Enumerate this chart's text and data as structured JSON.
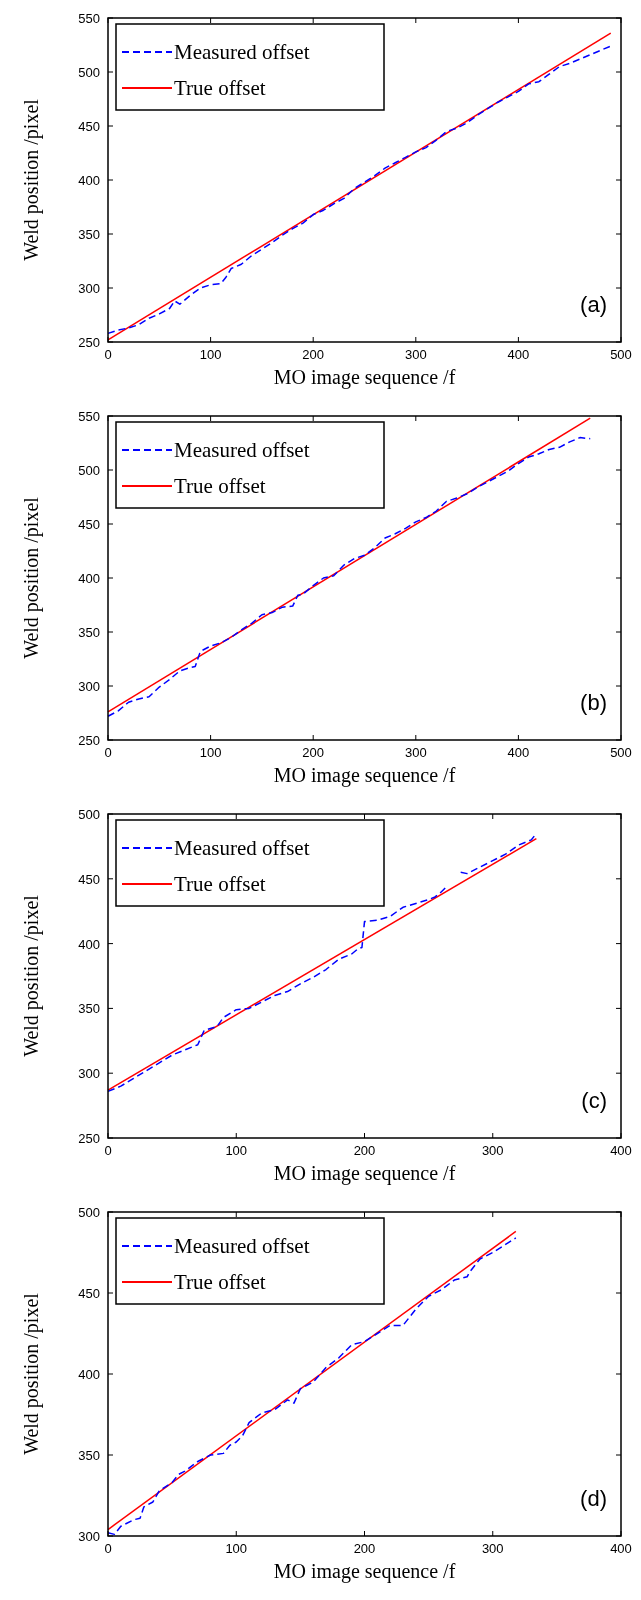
{
  "chart_data": [
    {
      "type": "line",
      "xlabel": "MO image sequence /f",
      "ylabel": "Weld position /pixel",
      "annotations": [
        "(a)"
      ],
      "xlim": [
        0,
        500
      ],
      "xticks": [
        0,
        100,
        200,
        300,
        400,
        500
      ],
      "ylim": [
        250,
        550
      ],
      "yticks": [
        250,
        300,
        350,
        400,
        450,
        500,
        550
      ],
      "grid": false,
      "legend": "top left",
      "series": [
        {
          "name": "Measured offset",
          "color": "#0000ff",
          "line_style": "dashed",
          "x": [
            0,
            10,
            20,
            30,
            40,
            50,
            60,
            65,
            70,
            80,
            90,
            100,
            110,
            115,
            120,
            130,
            140,
            150,
            160,
            170,
            180,
            190,
            200,
            210,
            220,
            230,
            240,
            250,
            260,
            270,
            280,
            290,
            300,
            310,
            320,
            330,
            340,
            350,
            360,
            370,
            380,
            390,
            400,
            410,
            420,
            430,
            440,
            450,
            460,
            470,
            480,
            490
          ],
          "values": [
            258,
            261,
            263,
            266,
            272,
            276,
            281,
            288,
            285,
            293,
            300,
            303,
            304,
            310,
            318,
            322,
            330,
            336,
            342,
            349,
            355,
            360,
            368,
            372,
            378,
            383,
            392,
            398,
            404,
            411,
            416,
            421,
            426,
            430,
            437,
            445,
            448,
            453,
            460,
            466,
            472,
            477,
            482,
            489,
            491,
            498,
            505,
            508,
            512,
            516,
            520,
            524
          ]
        },
        {
          "name": "True offset",
          "color": "#ff0000",
          "line_style": "solid",
          "x": [
            0,
            490
          ],
          "values": [
            252,
            536
          ]
        }
      ]
    },
    {
      "type": "line",
      "xlabel": "MO image sequence /f",
      "ylabel": "Weld position /pixel",
      "annotations": [
        "(b)"
      ],
      "xlim": [
        0,
        500
      ],
      "xticks": [
        0,
        100,
        200,
        300,
        400,
        500
      ],
      "ylim": [
        250,
        550
      ],
      "yticks": [
        250,
        300,
        350,
        400,
        450,
        500,
        550
      ],
      "grid": false,
      "legend": "top left",
      "series": [
        {
          "name": "Measured offset",
          "color": "#0000ff",
          "line_style": "dashed",
          "x": [
            0,
            10,
            20,
            30,
            40,
            50,
            60,
            70,
            80,
            85,
            90,
            100,
            110,
            120,
            130,
            140,
            150,
            160,
            170,
            180,
            185,
            190,
            200,
            210,
            220,
            230,
            240,
            250,
            260,
            270,
            280,
            290,
            300,
            310,
            320,
            330,
            340,
            350,
            360,
            370,
            380,
            390,
            400,
            410,
            420,
            430,
            440,
            450,
            460,
            470
          ],
          "values": [
            272,
            277,
            285,
            288,
            290,
            299,
            306,
            314,
            317,
            318,
            332,
            337,
            340,
            345,
            352,
            358,
            366,
            368,
            373,
            374,
            384,
            385,
            393,
            400,
            402,
            412,
            418,
            421,
            428,
            437,
            441,
            446,
            452,
            456,
            462,
            471,
            474,
            478,
            484,
            489,
            494,
            499,
            506,
            512,
            515,
            519,
            521,
            526,
            530,
            529
          ]
        },
        {
          "name": "True offset",
          "color": "#ff0000",
          "line_style": "solid",
          "x": [
            0,
            470
          ],
          "values": [
            276,
            548
          ]
        }
      ]
    },
    {
      "type": "line",
      "xlabel": "MO image sequence /f",
      "ylabel": "Weld position /pixel",
      "annotations": [
        "(c)"
      ],
      "xlim": [
        0,
        400
      ],
      "xticks": [
        0,
        100,
        200,
        300,
        400
      ],
      "ylim": [
        250,
        500
      ],
      "yticks": [
        250,
        300,
        350,
        400,
        450,
        500
      ],
      "grid": false,
      "legend": "top left",
      "series": [
        {
          "name": "Measured offset",
          "color": "#0000ff",
          "line_style": "dashed",
          "x": [
            0,
            10,
            20,
            30,
            40,
            50,
            60,
            70,
            75,
            85,
            90,
            100,
            110,
            120,
            130,
            140,
            150,
            160,
            170,
            180,
            190,
            195,
            198,
            200,
            210,
            220,
            230,
            240,
            250,
            255,
            260,
            265,
            270,
            275,
            280,
            290,
            300,
            310,
            320,
            330,
            334
          ],
          "values": [
            286,
            290,
            296,
            302,
            308,
            314,
            318,
            322,
            333,
            336,
            343,
            349,
            350,
            355,
            360,
            363,
            369,
            374,
            380,
            388,
            392,
            396,
            397,
            417,
            418,
            421,
            428,
            431,
            434,
            436,
            440,
            445,
            null,
            455,
            454,
            459,
            464,
            469,
            476,
            480,
            485
          ]
        },
        {
          "name": "True offset",
          "color": "#ff0000",
          "line_style": "solid",
          "x": [
            0,
            334
          ],
          "values": [
            287,
            481
          ]
        }
      ]
    },
    {
      "type": "line",
      "xlabel": "MO image sequence /f",
      "ylabel": "Weld position /pixel",
      "annotations": [
        "(d)"
      ],
      "xlim": [
        0,
        400
      ],
      "xticks": [
        0,
        100,
        200,
        300,
        400
      ],
      "ylim": [
        300,
        500
      ],
      "yticks": [
        300,
        350,
        400,
        450,
        500
      ],
      "grid": false,
      "legend": "top left",
      "series": [
        {
          "name": "Measured offset",
          "color": "#0000ff",
          "line_style": "dashed",
          "x": [
            0,
            5,
            10,
            20,
            25,
            28,
            35,
            40,
            50,
            55,
            60,
            70,
            80,
            90,
            95,
            100,
            105,
            110,
            120,
            130,
            140,
            145,
            150,
            160,
            170,
            180,
            190,
            200,
            210,
            220,
            230,
            240,
            250,
            260,
            270,
            280,
            282,
            290,
            300,
            310,
            318
          ],
          "values": [
            302,
            301,
            306,
            310,
            311,
            318,
            321,
            328,
            333,
            338,
            340,
            346,
            350,
            351,
            356,
            358,
            362,
            370,
            376,
            378,
            384,
            382,
            391,
            395,
            404,
            410,
            418,
            420,
            425,
            430,
            430,
            440,
            448,
            452,
            458,
            460,
            463,
            471,
            475,
            480,
            484
          ]
        },
        {
          "name": "True offset",
          "color": "#ff0000",
          "line_style": "solid",
          "x": [
            0,
            318
          ],
          "values": [
            304,
            488
          ]
        }
      ]
    }
  ]
}
